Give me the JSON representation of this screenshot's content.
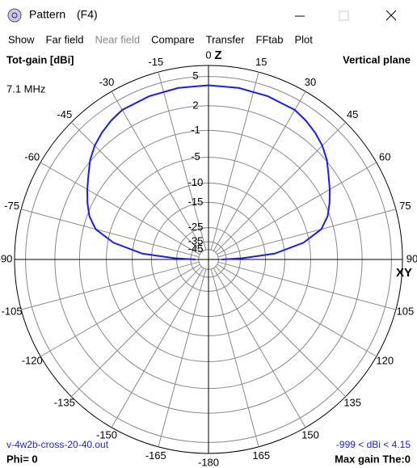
{
  "window": {
    "title": "Pattern",
    "shortcut": "(F4)"
  },
  "menu": [
    {
      "label": "Show",
      "enabled": true
    },
    {
      "label": "Far field",
      "enabled": true
    },
    {
      "label": "Near field",
      "enabled": false
    },
    {
      "label": "Compare",
      "enabled": true
    },
    {
      "label": "Transfer",
      "enabled": true
    },
    {
      "label": "FFtab",
      "enabled": true
    },
    {
      "label": "Plot",
      "enabled": true
    }
  ],
  "chart_data": {
    "type": "polar",
    "title": "Tot-gain [dBi]",
    "subtitle": "Vertical plane",
    "frequency": "7.1 MHz",
    "z_axis_label": "Z",
    "xy_axis_label": "XY",
    "rscale": "arrl",
    "rlim": [
      -45,
      6
    ],
    "rticks": [
      5,
      2,
      -1,
      -5,
      -10,
      -15,
      -25,
      -35,
      -45
    ],
    "angle_ticks": [
      0,
      15,
      30,
      45,
      60,
      75,
      90,
      105,
      120,
      135,
      150,
      165,
      -180,
      -165,
      -150,
      -135,
      -120,
      -105,
      -90,
      -75,
      -60,
      -45,
      -30,
      -15
    ],
    "grid": true,
    "series": [
      {
        "color": "#1a1aff",
        "x": [
          -90,
          -88,
          -85,
          -80,
          -75,
          -70,
          -65,
          -60,
          -55,
          -50,
          -45,
          -40,
          -35,
          -30,
          -20,
          -10,
          0,
          10,
          20,
          30,
          35,
          40,
          45,
          50,
          55,
          60,
          65,
          70,
          75,
          80,
          85,
          88,
          90
        ],
        "values": [
          -40,
          -24,
          -12.4,
          -6,
          -2.7,
          -1.3,
          -0.4,
          0.4,
          1.2,
          2.1,
          2.8,
          3.3,
          3.7,
          4.0,
          4.1,
          4.15,
          4.15,
          4.15,
          4.1,
          4.0,
          3.7,
          3.3,
          2.8,
          2.1,
          1.2,
          0.4,
          -0.4,
          -1.3,
          -2.7,
          -6,
          -12.4,
          -24,
          -40
        ]
      }
    ],
    "file_name": "v-4w2b-cross-20-40.out",
    "range_note": "-999 < dBi < 4.15",
    "phi_note": "Phi= 0",
    "max_gain_note": "Max gain The:0"
  }
}
